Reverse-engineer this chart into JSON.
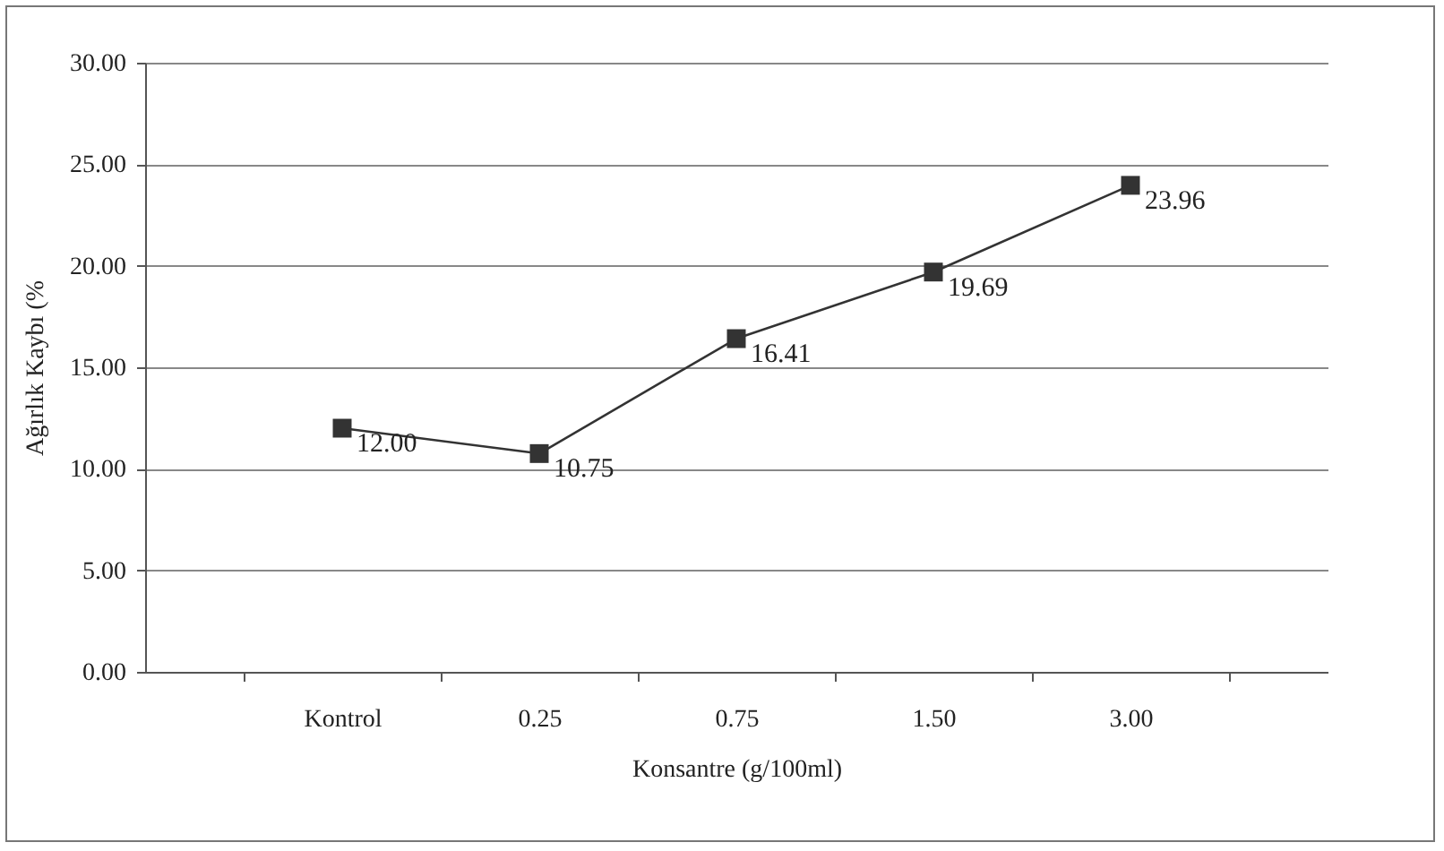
{
  "chart_data": {
    "type": "line",
    "xlabel": "Konsantre (g/100ml)",
    "ylabel": "Ağırlık Kaybı (%",
    "categories": [
      "Kontrol",
      "0.25",
      "0.75",
      "1.50",
      "3.00"
    ],
    "series": [
      {
        "color": "#333333",
        "values": [
          12.0,
          10.75,
          16.41,
          19.69,
          23.96
        ],
        "value_labels": [
          "12.00",
          "10.75",
          "16.41",
          "19.69",
          "23.96"
        ]
      }
    ],
    "ylim": [
      0,
      30
    ],
    "yticks": [
      {
        "value": 0,
        "label": "0.00"
      },
      {
        "value": 5,
        "label": "5.00"
      },
      {
        "value": 10,
        "label": "10.00"
      },
      {
        "value": 15,
        "label": "15.00"
      },
      {
        "value": 20,
        "label": "20.00"
      },
      {
        "value": 25,
        "label": "25.00"
      },
      {
        "value": 30,
        "label": "30.00"
      }
    ],
    "grid": "y",
    "marker": "square",
    "line_style": "solid"
  }
}
